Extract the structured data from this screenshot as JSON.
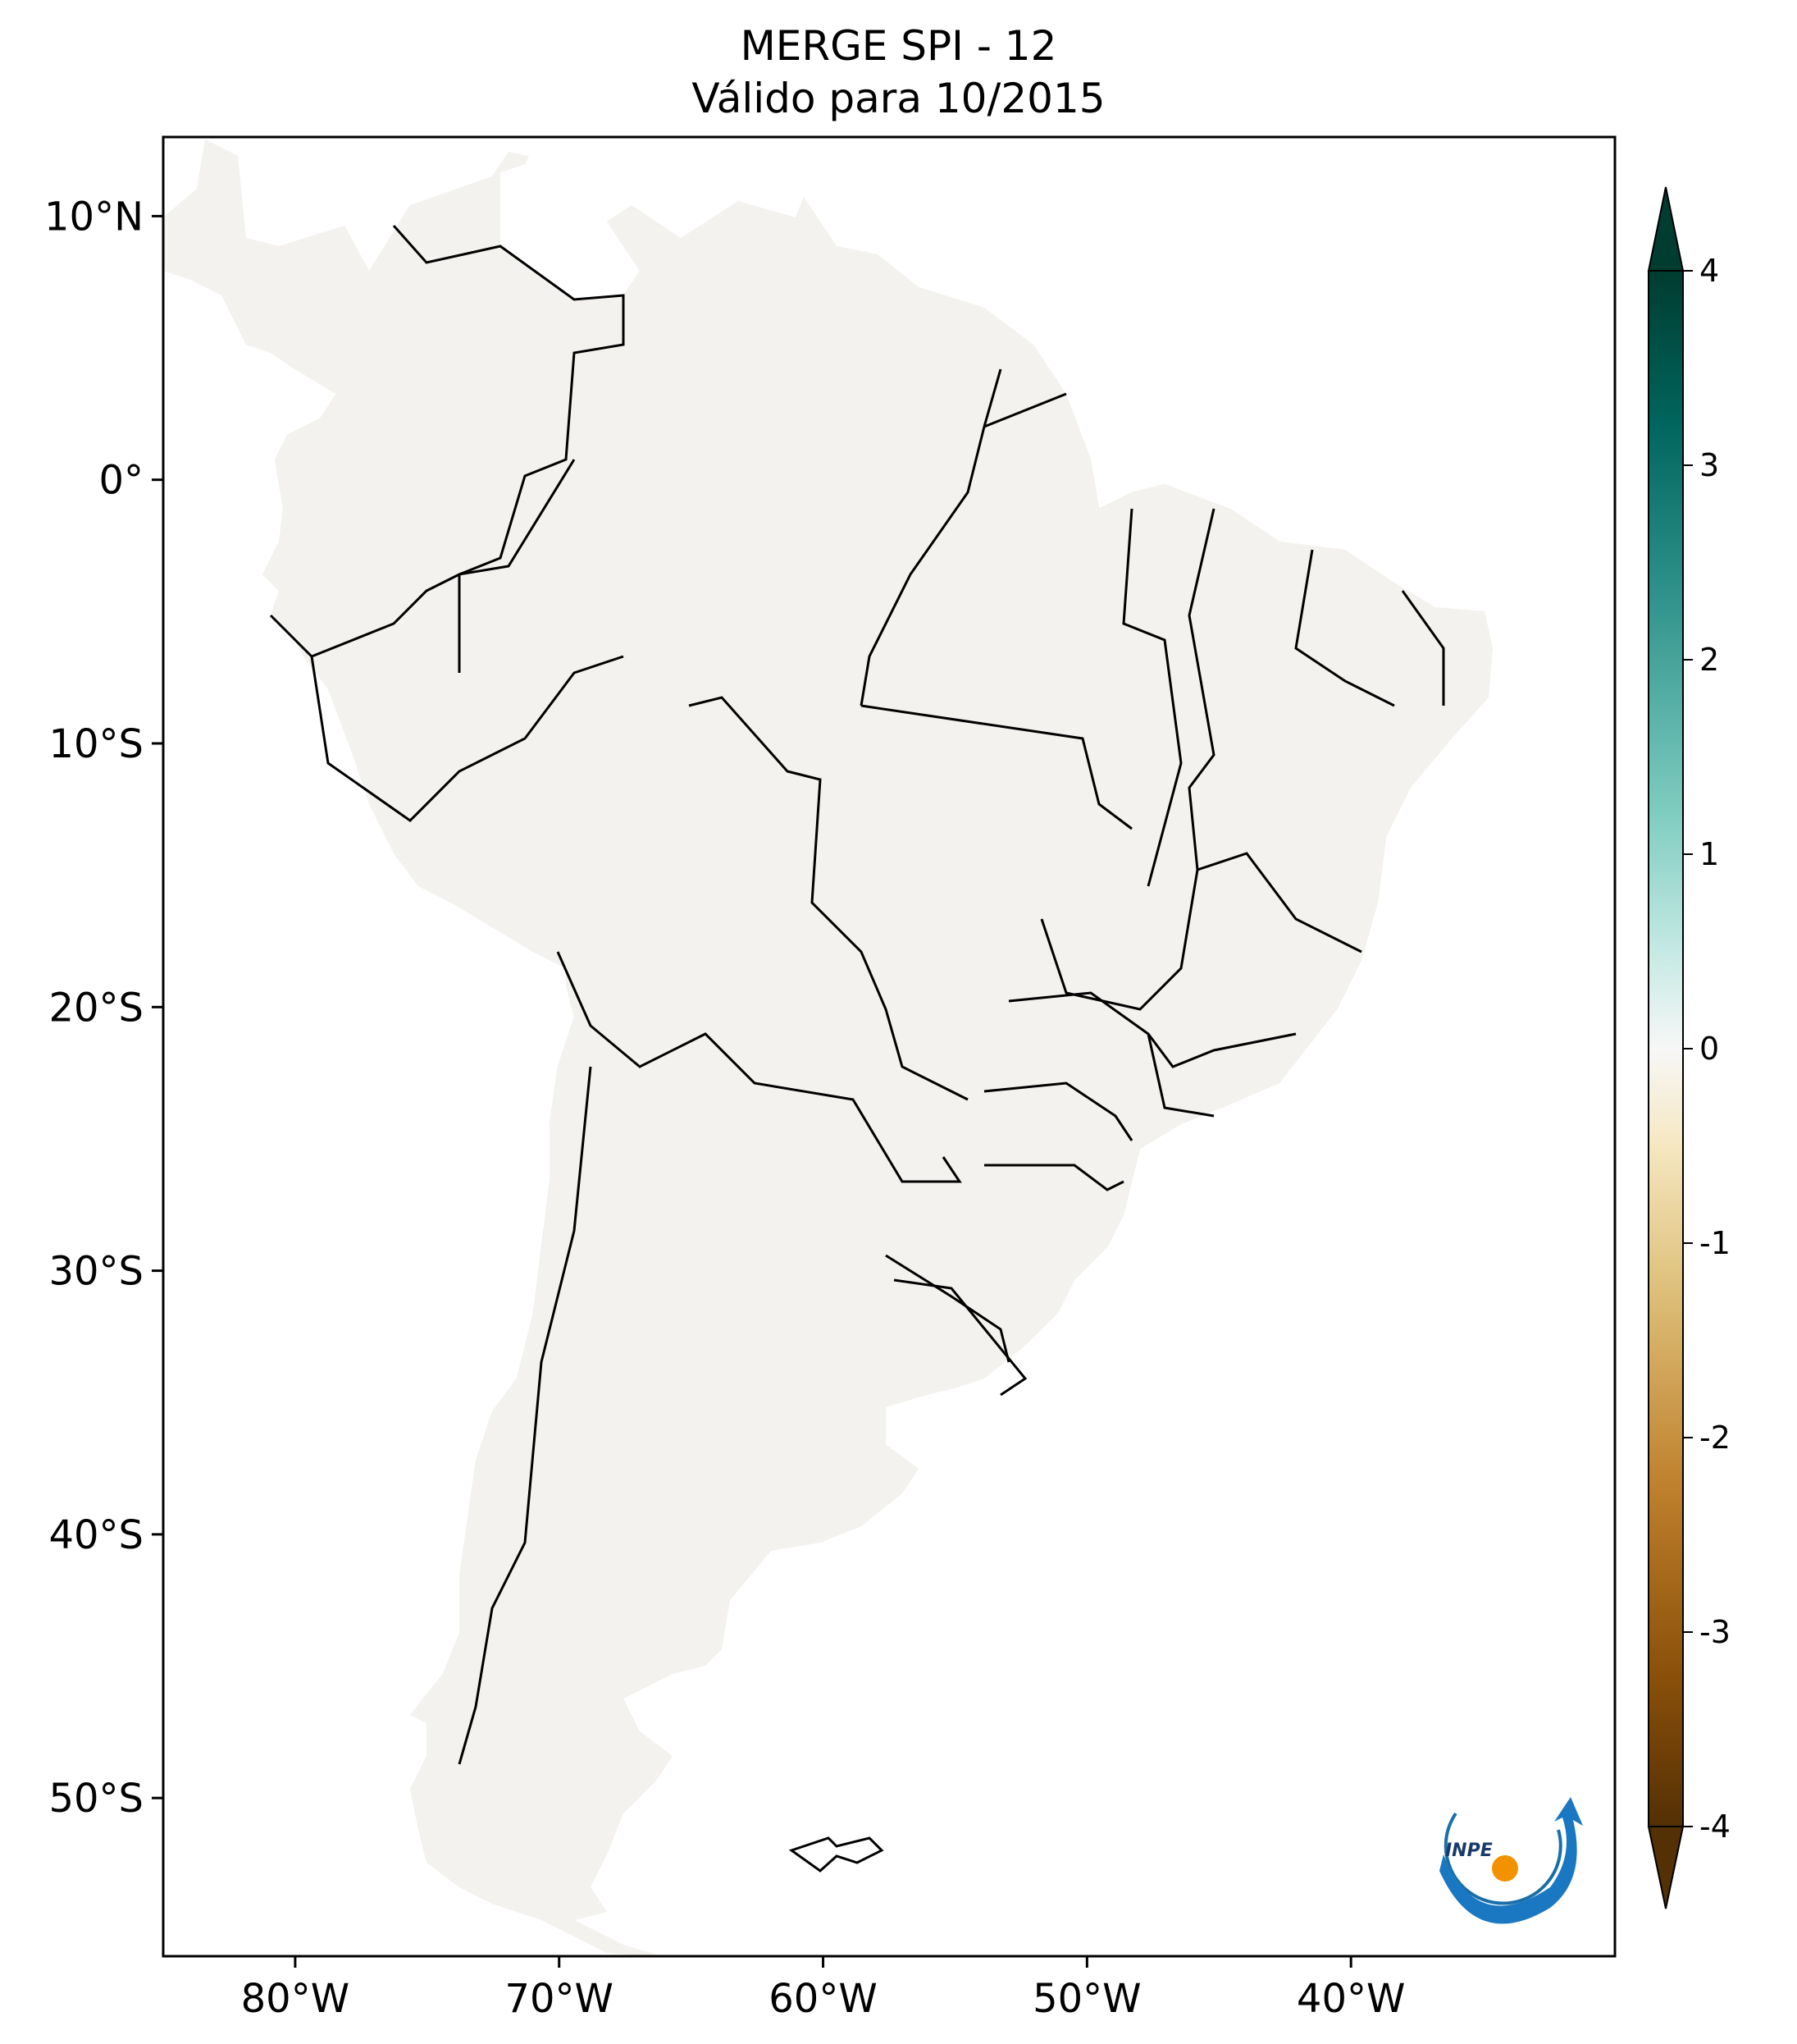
{
  "title": {
    "line1": "MERGE   SPI - 12",
    "line2": "Válido para 10/2015"
  },
  "map": {
    "lon_range": [
      -85,
      -30
    ],
    "lat_range": [
      -56,
      13
    ],
    "x_ticks": [
      {
        "lon": -80,
        "label": "80°W"
      },
      {
        "lon": -70,
        "label": "70°W"
      },
      {
        "lon": -60,
        "label": "60°W"
      },
      {
        "lon": -50,
        "label": "50°W"
      },
      {
        "lon": -40,
        "label": "40°W"
      }
    ],
    "y_ticks": [
      {
        "lat": 10,
        "label": "10°N"
      },
      {
        "lat": 0,
        "label": "0°"
      },
      {
        "lat": -10,
        "label": "10°S"
      },
      {
        "lat": -20,
        "label": "20°S"
      },
      {
        "lat": -30,
        "label": "30°S"
      },
      {
        "lat": -40,
        "label": "40°S"
      },
      {
        "lat": -50,
        "label": "50°S"
      }
    ]
  },
  "colorbar": {
    "range": [
      -4,
      4
    ],
    "extend": "both",
    "ticks": [
      {
        "value": 4,
        "label": "4"
      },
      {
        "value": 3,
        "label": "3"
      },
      {
        "value": 2,
        "label": "2"
      },
      {
        "value": 1,
        "label": "1"
      },
      {
        "value": 0,
        "label": "0"
      },
      {
        "value": -1,
        "label": "-1"
      },
      {
        "value": -2,
        "label": "-2"
      },
      {
        "value": -3,
        "label": "-3"
      },
      {
        "value": -4,
        "label": "-4"
      }
    ],
    "colors": {
      "dry_extreme": "#543005",
      "dry_strong": "#8c510a",
      "dry_moderate": "#bf812d",
      "dry_mild": "#dfc27d",
      "dry_light": "#f6e8c3",
      "neutral": "#f5f5f5",
      "wet_light": "#c7eae5",
      "wet_mild": "#80cdc1",
      "wet_moderate": "#35978f",
      "wet_strong": "#01665e",
      "wet_extreme": "#003c30"
    }
  },
  "logo": {
    "text": "INPE"
  }
}
